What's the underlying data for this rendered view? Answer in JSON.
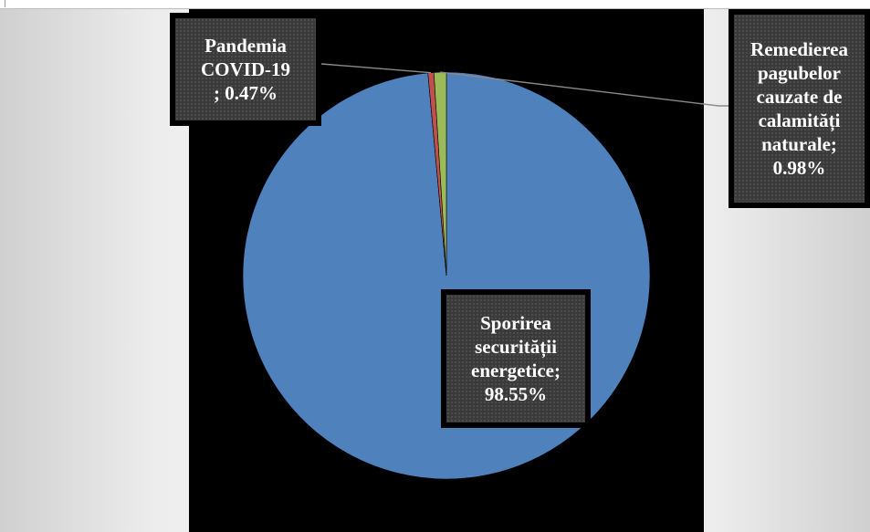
{
  "chart_data": {
    "type": "pie",
    "slices": [
      {
        "category": "Sporirea securității energetice",
        "value": 98.55,
        "label_lines": [
          "Sporirea",
          "securității",
          "energetice;",
          "98.55%"
        ],
        "color": "#4F81BD"
      },
      {
        "category": "Pandemia COVID-19",
        "value": 0.47,
        "label_lines": [
          "Pandemia",
          "COVID-19",
          "; 0.47%"
        ],
        "color": "#C0504D"
      },
      {
        "category": "Remedierea pagubelor cauzate de calamități naturale",
        "value": 0.98,
        "label_lines": [
          "Remedierea",
          "pagubelor",
          "cauzate de",
          "calamități",
          "naturale;",
          "0.98%"
        ],
        "color": "#9BBB59"
      }
    ],
    "start_angle_deg": 0,
    "direction": "clockwise",
    "legend": "none"
  }
}
